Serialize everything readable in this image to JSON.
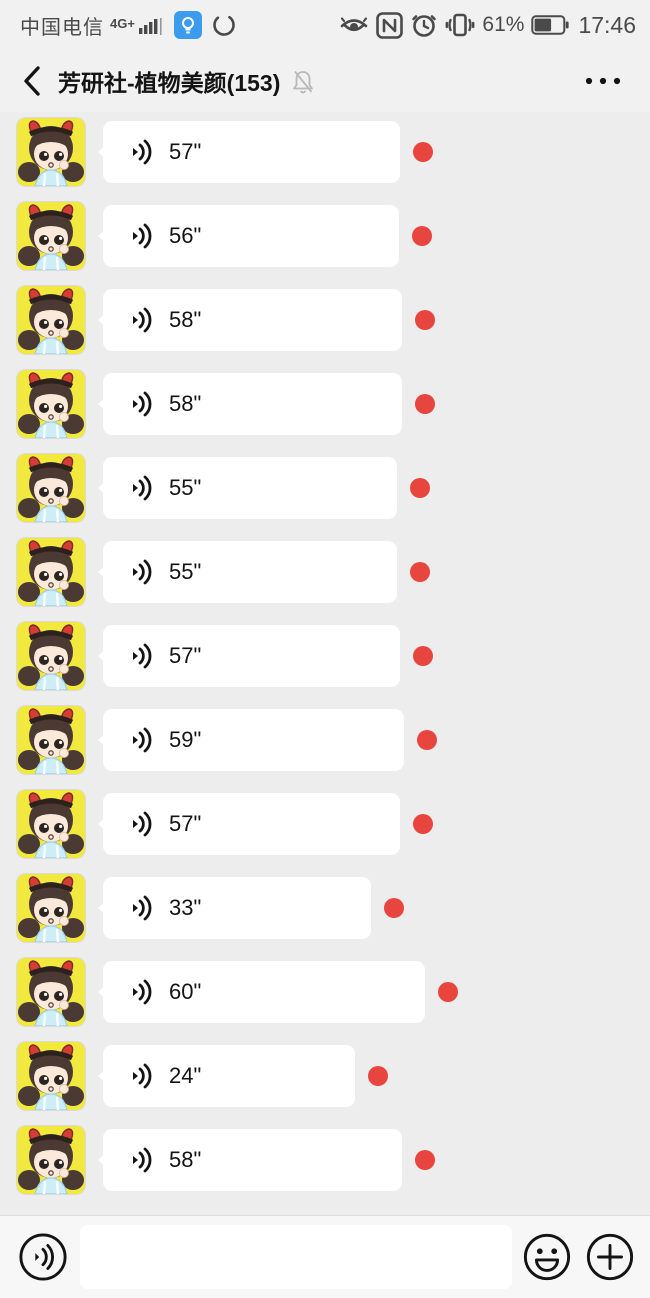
{
  "colors": {
    "background": "#ededed",
    "bubble": "#ffffff",
    "unread_dot": "#e8453f",
    "status_badge_blue": "#3b9ced",
    "muted_icon": "#b9b9b9",
    "avatar_yellow": "#f2e93e",
    "avatar_horn_red": "#d63c33"
  },
  "status_bar": {
    "carrier": "中国电信",
    "network_label": "4G+",
    "battery_percent": "61%",
    "battery_level": 0.61,
    "time": "17:46"
  },
  "nav": {
    "title": "芳研社-植物美颜(153)",
    "member_count": "153"
  },
  "messages": [
    {
      "duration_label": "57\"",
      "seconds": 57,
      "unread": true
    },
    {
      "duration_label": "56\"",
      "seconds": 56,
      "unread": true
    },
    {
      "duration_label": "58\"",
      "seconds": 58,
      "unread": true
    },
    {
      "duration_label": "58\"",
      "seconds": 58,
      "unread": true
    },
    {
      "duration_label": "55\"",
      "seconds": 55,
      "unread": true
    },
    {
      "duration_label": "55\"",
      "seconds": 55,
      "unread": true
    },
    {
      "duration_label": "57\"",
      "seconds": 57,
      "unread": true
    },
    {
      "duration_label": "59\"",
      "seconds": 59,
      "unread": true
    },
    {
      "duration_label": "57\"",
      "seconds": 57,
      "unread": true
    },
    {
      "duration_label": "33\"",
      "seconds": 33,
      "unread": true
    },
    {
      "duration_label": "60\"",
      "seconds": 60,
      "unread": true
    },
    {
      "duration_label": "24\"",
      "seconds": 24,
      "unread": true
    },
    {
      "duration_label": "58\"",
      "seconds": 58,
      "unread": true
    }
  ],
  "input_bar": {
    "message_value": "",
    "message_placeholder": ""
  }
}
